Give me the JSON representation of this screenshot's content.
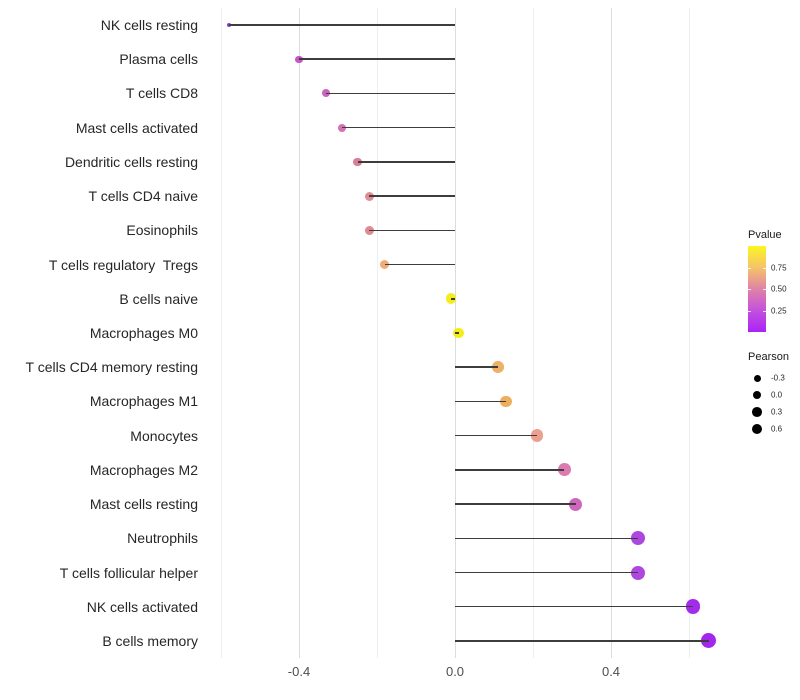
{
  "chart_data": {
    "type": "scatter",
    "variant": "lollipop",
    "title": "",
    "xlabel": "",
    "ylabel": "",
    "xlim": [
      -0.64,
      0.72
    ],
    "x_ticks_major": [
      -0.4,
      0.0,
      0.4
    ],
    "x_tick_labels": [
      "-0.4",
      "0.0",
      "0.4"
    ],
    "x_ticks_minor": [
      -0.6,
      -0.2,
      0.2,
      0.6
    ],
    "grid": "vertical-only",
    "baseline": 0.0,
    "points": [
      {
        "label": "NK cells resting",
        "pearson": -0.58,
        "pvalue": 0.1,
        "color": "#8f3dd1"
      },
      {
        "label": "Plasma cells",
        "pearson": -0.4,
        "pvalue": 0.3,
        "color": "#c455c6"
      },
      {
        "label": "T cells CD8",
        "pearson": -0.33,
        "pvalue": 0.36,
        "color": "#cc64be"
      },
      {
        "label": "Mast cells activated",
        "pearson": -0.29,
        "pvalue": 0.42,
        "color": "#d471b6"
      },
      {
        "label": "Dendritic cells resting",
        "pearson": -0.25,
        "pvalue": 0.5,
        "color": "#d97f98"
      },
      {
        "label": "T cells CD4 naive",
        "pearson": -0.22,
        "pvalue": 0.54,
        "color": "#e08d96"
      },
      {
        "label": "Eosinophils",
        "pearson": -0.22,
        "pvalue": 0.53,
        "color": "#df8a90"
      },
      {
        "label": "T cells regulatory  Tregs",
        "pearson": -0.18,
        "pvalue": 0.7,
        "color": "#efac76"
      },
      {
        "label": "B cells naive",
        "pearson": -0.01,
        "pvalue": 0.97,
        "color": "#f3ee1b"
      },
      {
        "label": "Macrophages M0",
        "pearson": 0.01,
        "pvalue": 0.97,
        "color": "#f3ee1b"
      },
      {
        "label": "T cells CD4 memory resting",
        "pearson": 0.11,
        "pvalue": 0.73,
        "color": "#edb266"
      },
      {
        "label": "Macrophages M1",
        "pearson": 0.13,
        "pvalue": 0.75,
        "color": "#edaf5e"
      },
      {
        "label": "Monocytes",
        "pearson": 0.21,
        "pvalue": 0.6,
        "color": "#ec9e8f"
      },
      {
        "label": "Macrophages M2",
        "pearson": 0.28,
        "pvalue": 0.45,
        "color": "#db7bb1"
      },
      {
        "label": "Mast cells resting",
        "pearson": 0.31,
        "pvalue": 0.35,
        "color": "#ce68bc"
      },
      {
        "label": "Neutrophils",
        "pearson": 0.47,
        "pvalue": 0.15,
        "color": "#ae46e0"
      },
      {
        "label": "T cells follicular helper",
        "pearson": 0.47,
        "pvalue": 0.15,
        "color": "#ae46e0"
      },
      {
        "label": "NK cells activated",
        "pearson": 0.61,
        "pvalue": 0.07,
        "color": "#a32bea"
      },
      {
        "label": "B cells memory",
        "pearson": 0.65,
        "pvalue": 0.05,
        "color": "#a226ee"
      }
    ],
    "legend_pvalue": {
      "title": "Pvalue",
      "range": [
        0,
        1
      ],
      "tick_labels": [
        "0.75",
        "0.50",
        "0.25"
      ],
      "tick_values": [
        0.75,
        0.5,
        0.25
      ],
      "gradient_top_to_bottom": [
        "#fbf621",
        "#f5c368",
        "#df83a6",
        "#c351de",
        "#aa23f6"
      ]
    },
    "legend_pearson": {
      "title": "Pearson",
      "entries": [
        {
          "label": "-0.3",
          "size": 7.0
        },
        {
          "label": "0.0",
          "size": 8.8
        },
        {
          "label": "0.3",
          "size": 9.8
        },
        {
          "label": "0.6",
          "size": 10.8
        }
      ],
      "dot_color": "#000000"
    },
    "colors": {
      "stem": "#3d3d3d",
      "axis_text_x": "#4d4d4d",
      "axis_text_y": "#262626",
      "grid_major": "#dcdcdc",
      "grid_minor": "#efefef",
      "background": "#ffffff"
    }
  }
}
